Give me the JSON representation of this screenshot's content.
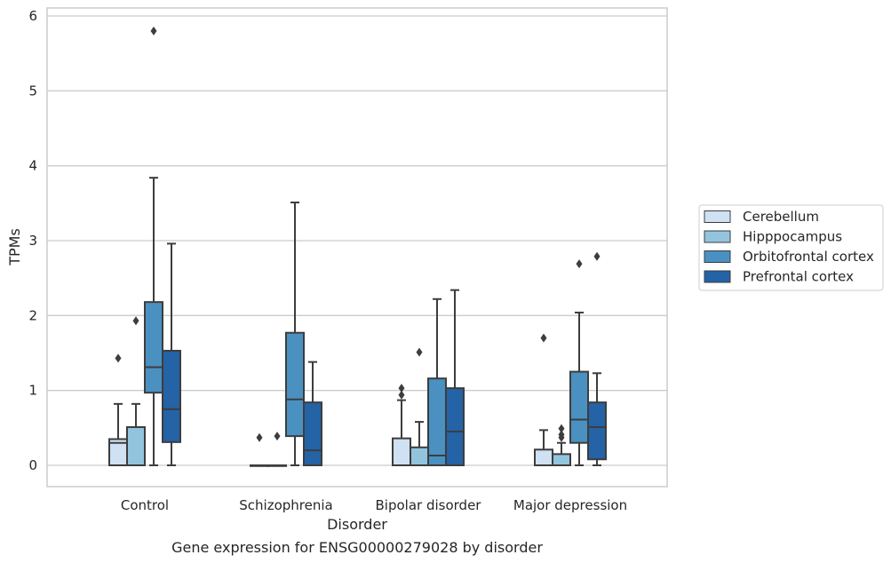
{
  "caption": "Gene expression for ENSG00000279028 by disorder",
  "chart_data": {
    "type": "boxplot",
    "xlabel": "Disorder",
    "ylabel": "TPMs",
    "ylim": [
      -0.28,
      6.1
    ],
    "yticks": [
      0,
      1,
      2,
      3,
      4,
      5,
      6
    ],
    "grid": "horizontal",
    "legend": "right",
    "categories": [
      "Control",
      "Schizophrenia",
      "Bipolar disorder",
      "Major depression"
    ],
    "series": [
      {
        "name": "Cerebellum",
        "color": "#cfe1f2",
        "boxes": [
          {
            "min": 0,
            "q1": 0,
            "median": 0.3,
            "q3": 0.35,
            "max": 0.82,
            "outliers": [
              1.43
            ]
          },
          {
            "min": 0,
            "q1": 0,
            "median": 0,
            "q3": 0,
            "max": 0,
            "outliers": [
              0.37
            ]
          },
          {
            "min": 0,
            "q1": 0,
            "median": 0,
            "q3": 0.36,
            "max": 0.87,
            "outliers": [
              0.94,
              1.03
            ]
          },
          {
            "min": 0,
            "q1": 0,
            "median": 0,
            "q3": 0.21,
            "max": 0.47,
            "outliers": [
              1.7
            ]
          }
        ]
      },
      {
        "name": "Hipppocampus",
        "color": "#93c4de",
        "boxes": [
          {
            "min": 0,
            "q1": 0,
            "median": 0,
            "q3": 0.51,
            "max": 0.82,
            "outliers": [
              1.93
            ]
          },
          {
            "min": 0,
            "q1": 0,
            "median": 0,
            "q3": 0,
            "max": 0,
            "outliers": [
              0.39
            ]
          },
          {
            "min": 0,
            "q1": 0,
            "median": 0,
            "q3": 0.24,
            "max": 0.58,
            "outliers": [
              1.51
            ]
          },
          {
            "min": 0,
            "q1": 0,
            "median": 0,
            "q3": 0.15,
            "max": 0.3,
            "outliers": [
              0.37,
              0.41,
              0.49
            ]
          }
        ]
      },
      {
        "name": "Orbitofrontal cortex",
        "color": "#4a91c2",
        "boxes": [
          {
            "min": 0,
            "q1": 0.97,
            "median": 1.31,
            "q3": 2.18,
            "max": 3.84,
            "outliers": [
              5.8
            ]
          },
          {
            "min": 0,
            "q1": 0.39,
            "median": 0.88,
            "q3": 1.77,
            "max": 3.51,
            "outliers": []
          },
          {
            "min": 0,
            "q1": 0,
            "median": 0.13,
            "q3": 1.16,
            "max": 2.22,
            "outliers": []
          },
          {
            "min": 0,
            "q1": 0.3,
            "median": 0.61,
            "q3": 1.25,
            "max": 2.04,
            "outliers": [
              2.69
            ]
          }
        ]
      },
      {
        "name": "Prefrontal cortex",
        "color": "#2463a5",
        "boxes": [
          {
            "min": 0,
            "q1": 0.31,
            "median": 0.75,
            "q3": 1.53,
            "max": 2.96,
            "outliers": []
          },
          {
            "min": 0,
            "q1": 0,
            "median": 0.2,
            "q3": 0.84,
            "max": 1.38,
            "outliers": []
          },
          {
            "min": 0,
            "q1": 0,
            "median": 0.45,
            "q3": 1.03,
            "max": 2.34,
            "outliers": []
          },
          {
            "min": 0,
            "q1": 0.08,
            "median": 0.51,
            "q3": 0.84,
            "max": 1.23,
            "outliers": [
              2.79
            ]
          }
        ]
      }
    ]
  }
}
